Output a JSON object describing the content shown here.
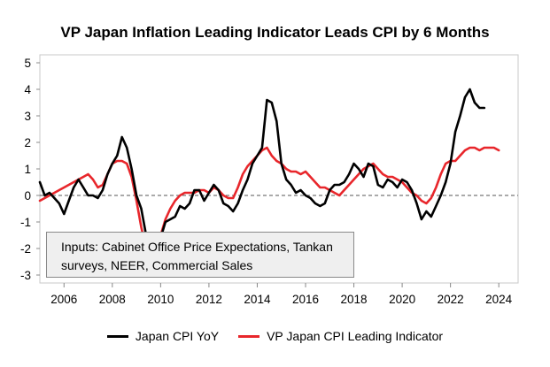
{
  "chart_data": {
    "type": "line",
    "title": "VP Japan Inflation Leading Indicator Leads CPI by 6 Months",
    "xlabel": "",
    "ylabel": "",
    "xlim": [
      2005,
      2024.8
    ],
    "ylim": [
      -3.3,
      5.3
    ],
    "x_ticks": [
      2006,
      2008,
      2010,
      2012,
      2014,
      2016,
      2018,
      2020,
      2022,
      2024
    ],
    "y_ticks": [
      -3,
      -2,
      -1,
      0,
      1,
      2,
      3,
      4,
      5
    ],
    "grid": false,
    "zero_line": "dashed",
    "legend_position": "bottom",
    "note": "Inputs: Cabinet Office Price Expectations, Tankan surveys, NEER, Commercial Sales",
    "series": [
      {
        "name": "Japan CPI YoY",
        "color": "#000000",
        "x": [
          2005.0,
          2005.2,
          2005.4,
          2005.6,
          2005.8,
          2006.0,
          2006.2,
          2006.4,
          2006.6,
          2006.8,
          2007.0,
          2007.2,
          2007.4,
          2007.6,
          2007.8,
          2008.0,
          2008.2,
          2008.4,
          2008.6,
          2008.8,
          2009.0,
          2009.2,
          2009.4,
          2009.6,
          2009.8,
          2010.0,
          2010.2,
          2010.4,
          2010.6,
          2010.8,
          2011.0,
          2011.2,
          2011.4,
          2011.6,
          2011.8,
          2012.0,
          2012.2,
          2012.4,
          2012.6,
          2012.8,
          2013.0,
          2013.2,
          2013.4,
          2013.6,
          2013.8,
          2014.0,
          2014.2,
          2014.4,
          2014.6,
          2014.8,
          2015.0,
          2015.2,
          2015.4,
          2015.6,
          2015.8,
          2016.0,
          2016.2,
          2016.4,
          2016.6,
          2016.8,
          2017.0,
          2017.2,
          2017.4,
          2017.6,
          2017.8,
          2018.0,
          2018.2,
          2018.4,
          2018.6,
          2018.8,
          2019.0,
          2019.2,
          2019.4,
          2019.6,
          2019.8,
          2020.0,
          2020.2,
          2020.4,
          2020.6,
          2020.8,
          2021.0,
          2021.2,
          2021.4,
          2021.6,
          2021.8,
          2022.0,
          2022.2,
          2022.4,
          2022.6,
          2022.8,
          2023.0,
          2023.2,
          2023.4
        ],
        "y": [
          0.5,
          0.0,
          0.1,
          -0.1,
          -0.3,
          -0.7,
          -0.2,
          0.3,
          0.6,
          0.3,
          0.0,
          0.0,
          -0.1,
          0.2,
          0.8,
          1.2,
          1.5,
          2.2,
          1.8,
          1.0,
          0.0,
          -0.5,
          -1.5,
          -2.2,
          -2.5,
          -1.6,
          -1.0,
          -0.9,
          -0.8,
          -0.4,
          -0.5,
          -0.3,
          0.2,
          0.2,
          -0.2,
          0.1,
          0.4,
          0.2,
          -0.3,
          -0.4,
          -0.6,
          -0.3,
          0.2,
          0.6,
          1.2,
          1.5,
          1.8,
          3.6,
          3.5,
          2.8,
          1.2,
          0.6,
          0.4,
          0.1,
          0.2,
          0.0,
          -0.1,
          -0.3,
          -0.4,
          -0.3,
          0.2,
          0.4,
          0.4,
          0.5,
          0.8,
          1.2,
          1.0,
          0.7,
          1.2,
          1.1,
          0.4,
          0.3,
          0.6,
          0.5,
          0.3,
          0.6,
          0.5,
          0.2,
          -0.3,
          -0.9,
          -0.6,
          -0.8,
          -0.4,
          0.0,
          0.5,
          1.2,
          2.4,
          3.0,
          3.7,
          4.0,
          3.5,
          3.3,
          3.3
        ]
      },
      {
        "name": "VP Japan CPI Leading Indicator",
        "color": "#e8262b",
        "x": [
          2005.0,
          2005.2,
          2005.4,
          2005.6,
          2005.8,
          2006.0,
          2006.2,
          2006.4,
          2006.6,
          2006.8,
          2007.0,
          2007.2,
          2007.4,
          2007.6,
          2007.8,
          2008.0,
          2008.2,
          2008.4,
          2008.6,
          2008.8,
          2009.0,
          2009.2,
          2009.4,
          2009.6,
          2009.8,
          2010.0,
          2010.2,
          2010.4,
          2010.6,
          2010.8,
          2011.0,
          2011.2,
          2011.4,
          2011.6,
          2011.8,
          2012.0,
          2012.2,
          2012.4,
          2012.6,
          2012.8,
          2013.0,
          2013.2,
          2013.4,
          2013.6,
          2013.8,
          2014.0,
          2014.2,
          2014.4,
          2014.6,
          2014.8,
          2015.0,
          2015.2,
          2015.4,
          2015.6,
          2015.8,
          2016.0,
          2016.2,
          2016.4,
          2016.6,
          2016.8,
          2017.0,
          2017.2,
          2017.4,
          2017.6,
          2017.8,
          2018.0,
          2018.2,
          2018.4,
          2018.6,
          2018.8,
          2019.0,
          2019.2,
          2019.4,
          2019.6,
          2019.8,
          2020.0,
          2020.2,
          2020.4,
          2020.6,
          2020.8,
          2021.0,
          2021.2,
          2021.4,
          2021.6,
          2021.8,
          2022.0,
          2022.2,
          2022.4,
          2022.6,
          2022.8,
          2023.0,
          2023.2,
          2023.4,
          2023.6,
          2023.8,
          2024.0
        ],
        "y": [
          -0.2,
          -0.1,
          0.0,
          0.1,
          0.2,
          0.3,
          0.4,
          0.5,
          0.6,
          0.7,
          0.8,
          0.6,
          0.3,
          0.4,
          0.8,
          1.2,
          1.3,
          1.3,
          1.2,
          0.7,
          -0.2,
          -1.2,
          -2.0,
          -2.4,
          -2.0,
          -1.5,
          -0.9,
          -0.5,
          -0.2,
          0.0,
          0.1,
          0.1,
          0.1,
          0.2,
          0.2,
          0.1,
          0.3,
          0.2,
          0.0,
          -0.1,
          -0.1,
          0.3,
          0.8,
          1.1,
          1.3,
          1.5,
          1.7,
          1.8,
          1.5,
          1.3,
          1.2,
          1.0,
          0.9,
          0.9,
          0.8,
          0.9,
          0.7,
          0.5,
          0.3,
          0.3,
          0.2,
          0.1,
          0.0,
          0.2,
          0.4,
          0.6,
          0.8,
          1.0,
          1.1,
          1.2,
          1.0,
          0.8,
          0.7,
          0.7,
          0.6,
          0.5,
          0.3,
          0.1,
          0.0,
          -0.2,
          -0.3,
          -0.1,
          0.3,
          0.8,
          1.2,
          1.3,
          1.3,
          1.5,
          1.7,
          1.8,
          1.8,
          1.7,
          1.8,
          1.8,
          1.8,
          1.7
        ]
      }
    ]
  }
}
